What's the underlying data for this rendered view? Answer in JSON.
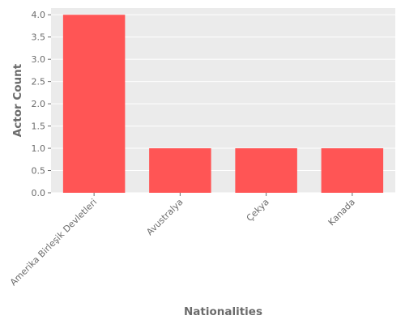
{
  "chart_data": {
    "type": "bar",
    "title": "",
    "xlabel": "Nationalities",
    "ylabel": "Actor Count",
    "categories": [
      "Amerika Birleşik Devletleri",
      "Avustralya",
      "Çekya",
      "Kanada"
    ],
    "values": [
      4,
      1,
      1,
      1
    ],
    "ylim": [
      0,
      4.15
    ],
    "yticks": [
      0.0,
      0.5,
      1.0,
      1.5,
      2.0,
      2.5,
      3.0,
      3.5,
      4.0
    ],
    "ytick_labels": [
      "0.0",
      "0.5",
      "1.0",
      "1.5",
      "2.0",
      "2.5",
      "3.0",
      "3.5",
      "4.0"
    ],
    "grid": true,
    "legend": "none",
    "colors": {
      "bar": "#ff5555",
      "plot_background": "#ebebeb",
      "grid": "#ffffff",
      "text": "#6b6b6b"
    }
  }
}
